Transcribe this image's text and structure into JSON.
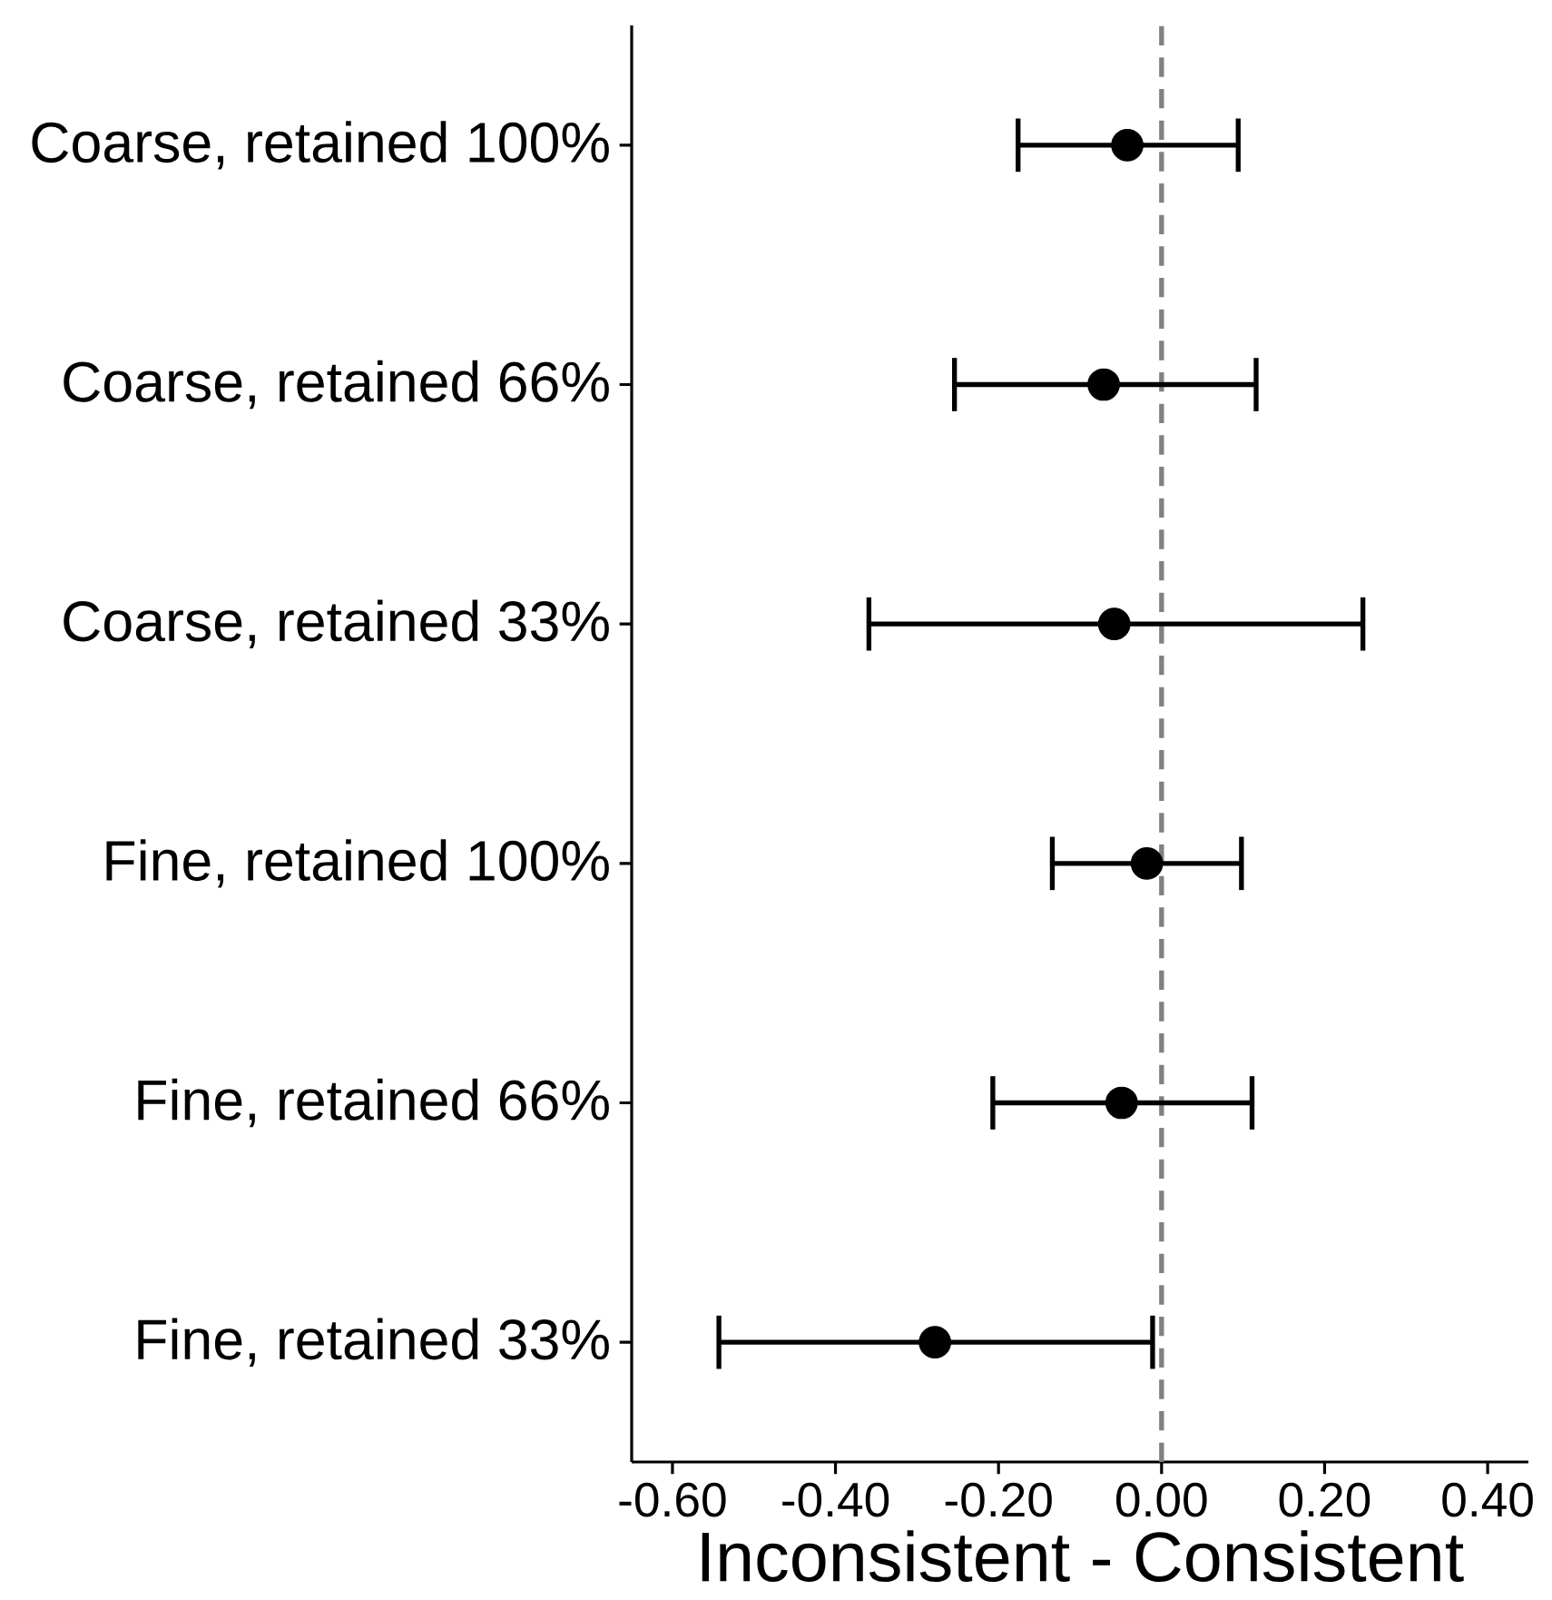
{
  "chart_data": {
    "type": "scatter",
    "orientation": "horizontal",
    "xlabel": "Inconsistent - Consistent",
    "categories": [
      "Coarse, retained 100%",
      "Coarse, retained 66%",
      "Coarse, retained 33%",
      "Fine, retained 100%",
      "Fine, retained 66%",
      "Fine, retained 33%"
    ],
    "values": [
      -0.042,
      -0.071,
      -0.058,
      -0.018,
      -0.049,
      -0.278
    ],
    "errors": [
      [
        -0.176,
        0.094
      ],
      [
        -0.254,
        0.116
      ],
      [
        -0.359,
        0.247
      ],
      [
        -0.134,
        0.098
      ],
      [
        -0.207,
        0.111
      ],
      [
        -0.543,
        -0.011
      ]
    ],
    "color": "#000000",
    "marker": "circle",
    "grid": false,
    "xlim": [
      -0.65,
      0.45
    ],
    "xticks": [
      {
        "value": -0.6,
        "label": "-0.60"
      },
      {
        "value": -0.4,
        "label": "-0.40"
      },
      {
        "value": -0.2,
        "label": "-0.20"
      },
      {
        "value": 0,
        "label": "0.00"
      },
      {
        "value": 0.2,
        "label": "0.20"
      },
      {
        "value": 0.4,
        "label": "0.40"
      }
    ],
    "ref_lines": [
      {
        "axis": "x",
        "value": 0,
        "color": "#808080",
        "line_style": "dashed"
      }
    ]
  }
}
